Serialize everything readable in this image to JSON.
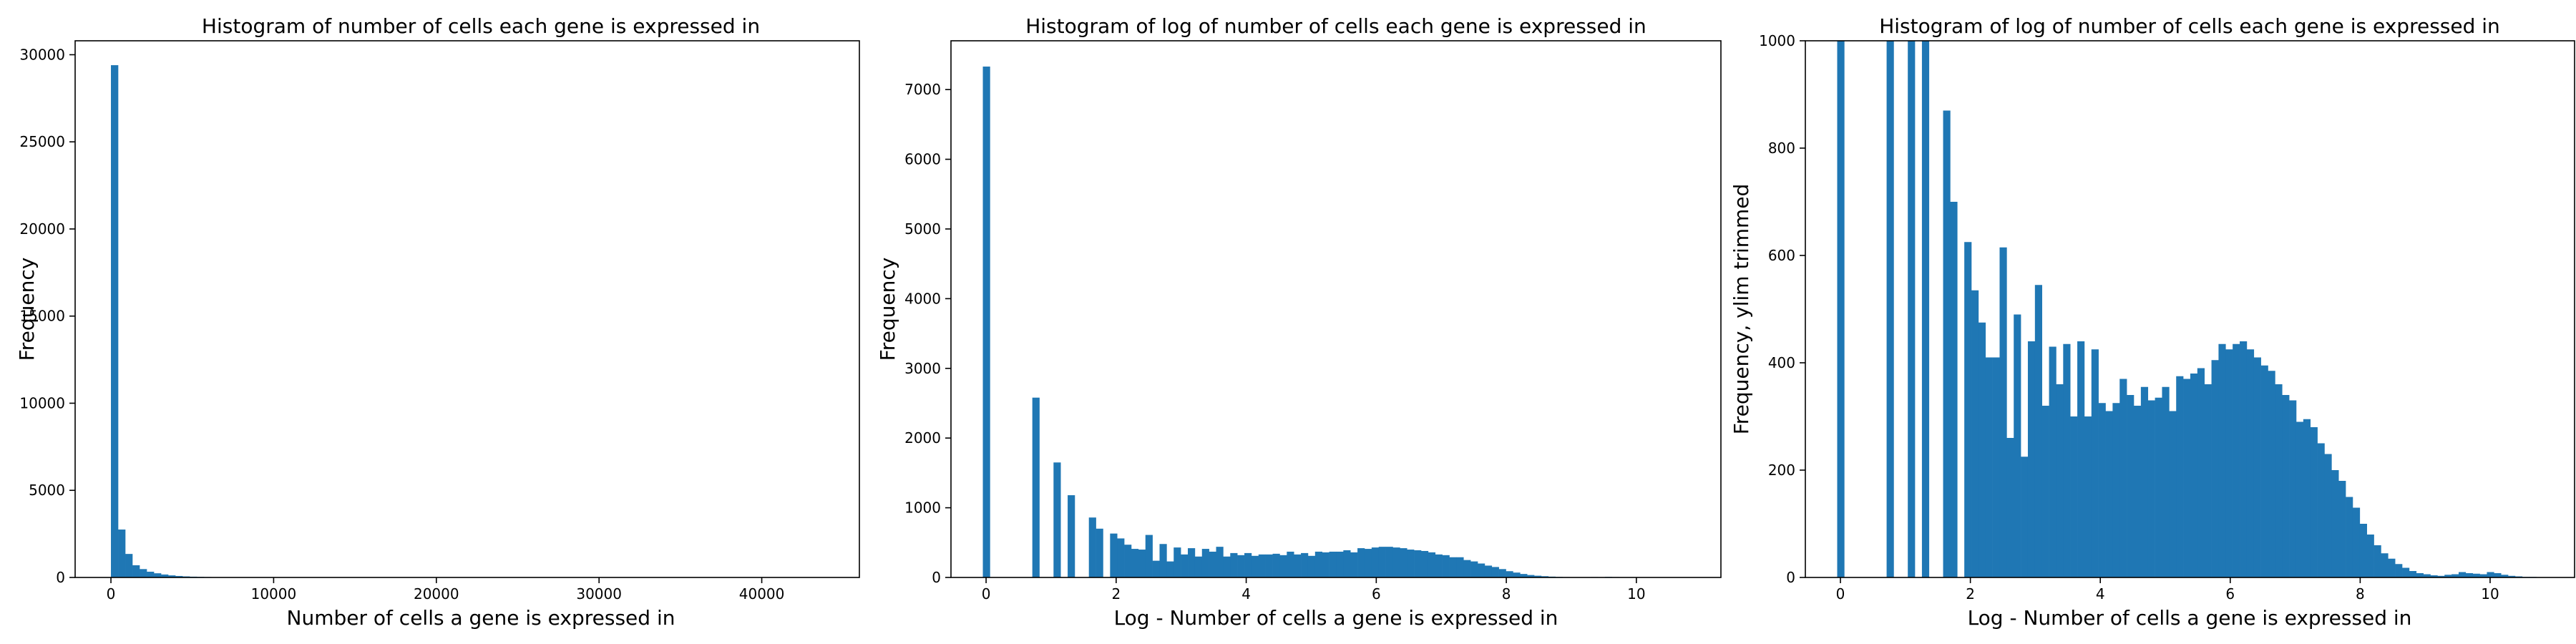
{
  "colors": {
    "bar": "#1f77b4"
  },
  "chart_data": [
    {
      "type": "bar",
      "title": "Histogram of number of cells each gene is expressed in",
      "xlabel": "Number of cells a gene is expressed in",
      "ylabel": "Frequency",
      "xlim": [
        -2200,
        46000
      ],
      "ylim": [
        0,
        30800
      ],
      "xticks": [
        0,
        10000,
        20000,
        30000,
        40000
      ],
      "yticks": [
        0,
        5000,
        10000,
        15000,
        20000,
        25000,
        30000
      ],
      "bin_start": 0,
      "bin_width": 440,
      "values": [
        29400,
        2750,
        1350,
        700,
        480,
        330,
        240,
        170,
        120,
        85,
        60,
        45,
        35,
        25,
        20,
        15,
        12,
        10,
        8,
        6,
        5,
        4,
        3,
        3,
        2,
        2,
        2,
        1,
        1,
        1
      ]
    },
    {
      "type": "bar",
      "title": "Histogram of log of number of cells each gene is expressed in",
      "xlabel": "Log - Number of cells a gene is expressed in",
      "ylabel": "Frequency",
      "xlim": [
        -0.54,
        11.3
      ],
      "ylim": [
        0,
        7700
      ],
      "xticks": [
        0,
        2,
        4,
        6,
        8,
        10
      ],
      "yticks": [
        0,
        1000,
        2000,
        3000,
        4000,
        5000,
        6000,
        7000
      ],
      "bin_start": -0.05,
      "bin_width": 0.1087,
      "values": [
        7330,
        0,
        0,
        0,
        0,
        0,
        0,
        2580,
        0,
        0,
        1650,
        0,
        1180,
        0,
        0,
        860,
        700,
        0,
        630,
        560,
        470,
        410,
        400,
        610,
        240,
        480,
        230,
        430,
        330,
        420,
        300,
        410,
        370,
        440,
        300,
        350,
        320,
        350,
        310,
        330,
        330,
        340,
        320,
        370,
        330,
        350,
        310,
        370,
        360,
        370,
        370,
        390,
        360,
        420,
        410,
        430,
        440,
        440,
        430,
        420,
        400,
        390,
        380,
        360,
        330,
        320,
        290,
        290,
        250,
        230,
        200,
        170,
        150,
        120,
        90,
        70,
        50,
        35,
        25,
        18,
        12,
        8,
        6,
        5,
        4,
        3,
        6,
        5,
        8,
        6,
        5,
        4,
        3,
        2,
        1,
        1,
        1,
        0,
        0,
        0
      ]
    },
    {
      "type": "bar",
      "title": "Histogram of log of number of cells each gene is expressed in",
      "xlabel": "Log - Number of cells a gene is expressed in",
      "ylabel": "Frequency, ylim trimmed",
      "xlim": [
        -0.54,
        11.3
      ],
      "ylim": [
        0,
        1000
      ],
      "xticks": [
        0,
        2,
        4,
        6,
        8,
        10
      ],
      "yticks": [
        0,
        200,
        400,
        600,
        800,
        1000
      ],
      "bin_start": -0.05,
      "bin_width": 0.1087,
      "values": [
        7330,
        0,
        0,
        0,
        0,
        0,
        0,
        2580,
        0,
        0,
        1650,
        0,
        1180,
        0,
        0,
        870,
        700,
        0,
        625,
        535,
        475,
        410,
        410,
        615,
        260,
        490,
        225,
        440,
        545,
        320,
        430,
        360,
        435,
        300,
        440,
        300,
        425,
        325,
        310,
        325,
        370,
        340,
        320,
        355,
        330,
        335,
        355,
        310,
        375,
        370,
        380,
        390,
        360,
        405,
        435,
        425,
        435,
        440,
        425,
        410,
        395,
        385,
        360,
        340,
        330,
        290,
        295,
        280,
        250,
        230,
        200,
        180,
        150,
        130,
        100,
        80,
        60,
        45,
        35,
        25,
        18,
        12,
        8,
        6,
        4,
        3,
        5,
        6,
        10,
        8,
        7,
        6,
        10,
        8,
        5,
        3,
        2,
        1,
        1,
        0,
        0
      ]
    }
  ]
}
